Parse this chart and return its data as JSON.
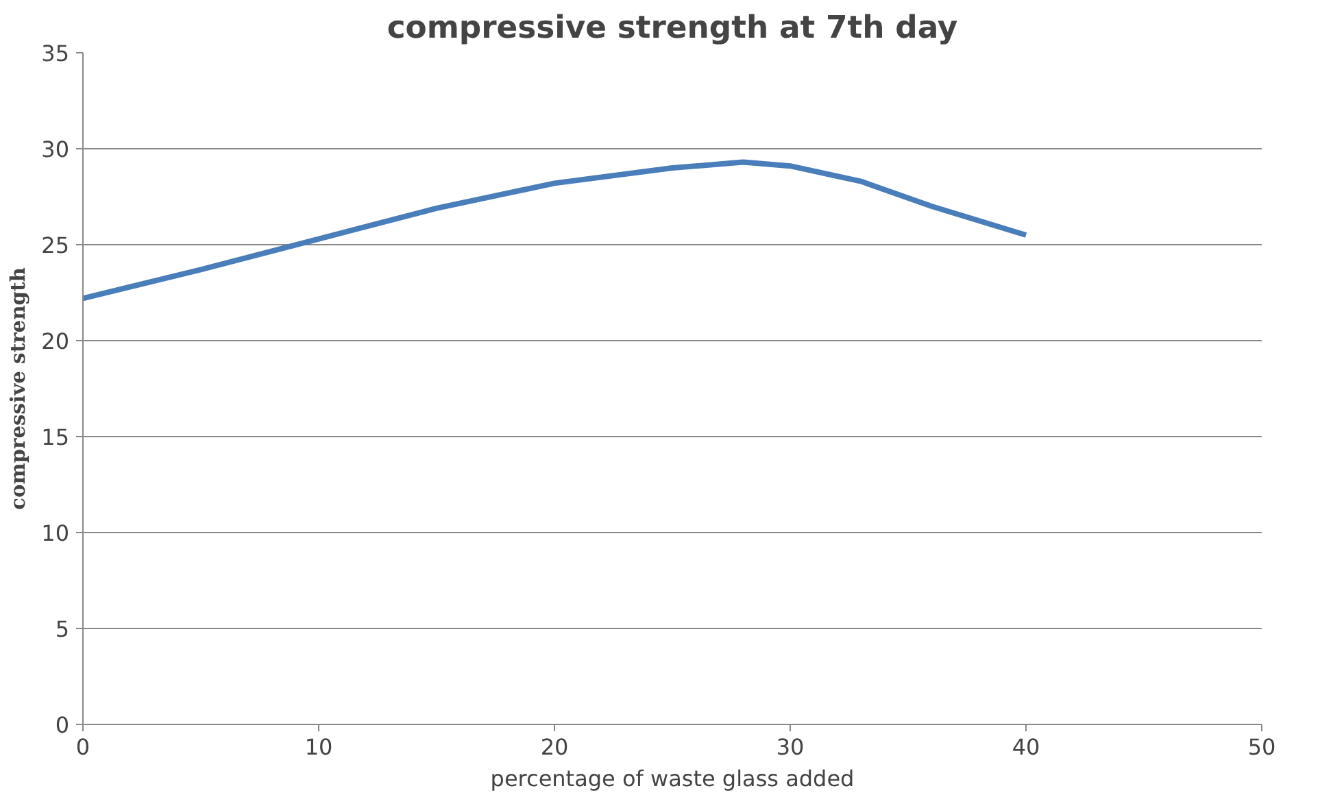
{
  "chart_data": {
    "type": "line",
    "title": "compressive strength at 7th day",
    "xlabel": "percentage of waste glass added",
    "ylabel": "compressive strength",
    "x": [
      0,
      5,
      10,
      15,
      20,
      25,
      28,
      30,
      33,
      36,
      40
    ],
    "series": [
      {
        "color": "#4a7ebb",
        "values": [
          22.2,
          23.7,
          25.3,
          26.9,
          28.2,
          29.0,
          29.3,
          29.1,
          28.3,
          27.0,
          25.5
        ]
      }
    ],
    "xlim": [
      0,
      50
    ],
    "xticks": [
      0,
      10,
      20,
      30,
      40,
      50
    ],
    "ylim": [
      0,
      35
    ],
    "yticks": [
      0,
      5,
      10,
      15,
      20,
      25,
      30,
      35
    ],
    "grid": "y",
    "marker": "none",
    "line_style": "solid"
  }
}
